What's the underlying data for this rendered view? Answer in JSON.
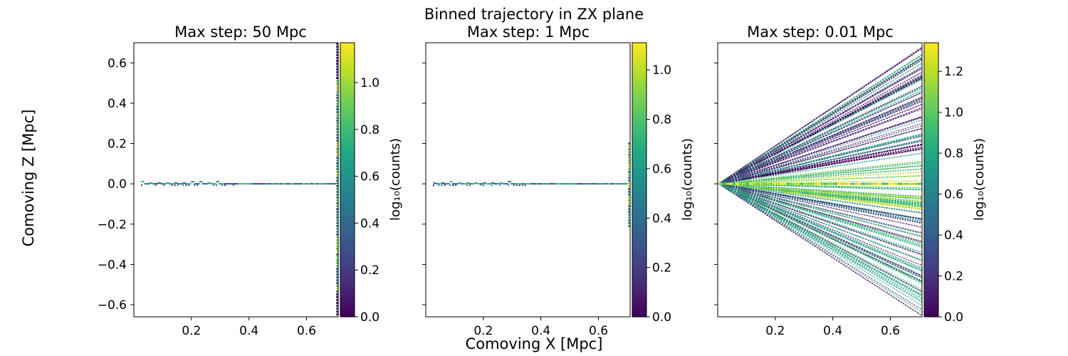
{
  "suptitle": "Binned trajectory in ZX plane",
  "xlabel": "Comoving X [Mpc]",
  "ylabel": "Comoving Z [Mpc]",
  "colorbar_label": "log₁₀(counts)",
  "chart_data": [
    {
      "type": "heatmap",
      "title": "Max step: 50 Mpc",
      "xlim": [
        0.0,
        0.71
      ],
      "ylim": [
        -0.66,
        0.7
      ],
      "x_ticks": [
        0.2,
        0.4,
        0.6
      ],
      "x_tick_labels": [
        "0.2",
        "0.4",
        "0.6"
      ],
      "y_ticks": [
        0.6,
        0.4,
        0.2,
        0.0,
        -0.2,
        -0.4,
        -0.6
      ],
      "y_tick_labels": [
        "0.6",
        "0.4",
        "0.2",
        "0.0",
        "−0.2",
        "−0.4",
        "−0.6"
      ],
      "colorbar_range": [
        0.0,
        1.17
      ],
      "colorbar_ticks": [
        0.0,
        0.2,
        0.4,
        0.6,
        0.8,
        1.0
      ],
      "colorbar_tick_labels": [
        "0.0",
        "0.2",
        "0.4",
        "0.6",
        "0.8",
        "1.0"
      ],
      "colormap": "viridis",
      "pattern": "thin horizontal band at Z≈0 along X from 0 to 0.71, bright vertical column at X≈0.71"
    },
    {
      "type": "heatmap",
      "title": "Max step: 1 Mpc",
      "xlim": [
        0.0,
        0.71
      ],
      "ylim": [
        -0.66,
        0.7
      ],
      "x_ticks": [
        0.2,
        0.4,
        0.6
      ],
      "x_tick_labels": [
        "0.2",
        "0.4",
        "0.6"
      ],
      "y_ticks": [
        0.6,
        0.4,
        0.2,
        0.0,
        -0.2,
        -0.4,
        -0.6
      ],
      "colorbar_range": [
        0.0,
        1.11
      ],
      "colorbar_ticks": [
        0.0,
        0.2,
        0.4,
        0.6,
        0.8,
        1.0
      ],
      "colorbar_tick_labels": [
        "0.0",
        "0.2",
        "0.4",
        "0.6",
        "0.8",
        "1.0"
      ],
      "colormap": "viridis",
      "pattern": "thin horizontal band at Z≈0 along X from 0 to 0.71"
    },
    {
      "type": "heatmap",
      "title": "Max step: 0.01 Mpc",
      "xlim": [
        0.0,
        0.71
      ],
      "ylim": [
        -0.66,
        0.7
      ],
      "x_ticks": [
        0.2,
        0.4,
        0.6
      ],
      "x_tick_labels": [
        "0.2",
        "0.4",
        "0.6"
      ],
      "y_ticks": [
        0.6,
        0.4,
        0.2,
        0.0,
        -0.2,
        -0.4,
        -0.6
      ],
      "colorbar_range": [
        0.0,
        1.34
      ],
      "colorbar_ticks": [
        0.0,
        0.2,
        0.4,
        0.6,
        0.8,
        1.0,
        1.2
      ],
      "colorbar_tick_labels": [
        "0.0",
        "0.2",
        "0.4",
        "0.6",
        "0.8",
        "1.0",
        "1.2"
      ],
      "colormap": "viridis",
      "pattern": "fan of trajectories from origin spreading to Z≈±0.68 at X=0.71"
    }
  ]
}
